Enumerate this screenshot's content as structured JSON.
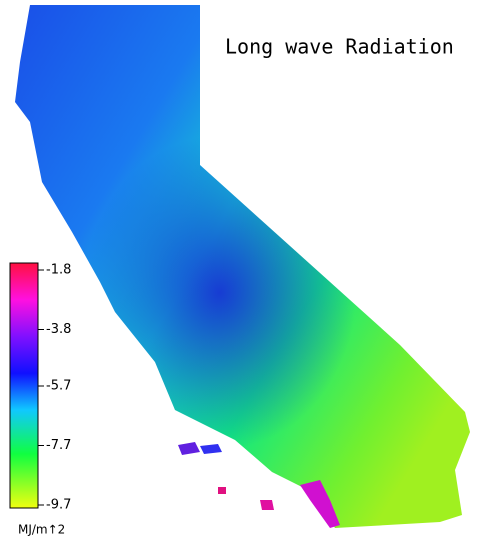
{
  "title": "Long wave Radiation",
  "colorbar": {
    "range": [
      -9.7,
      -1.8
    ],
    "ticks": [
      -1.8,
      -3.8,
      -5.7,
      -7.7,
      -9.7
    ],
    "unit": "MJ/m↑2"
  }
}
